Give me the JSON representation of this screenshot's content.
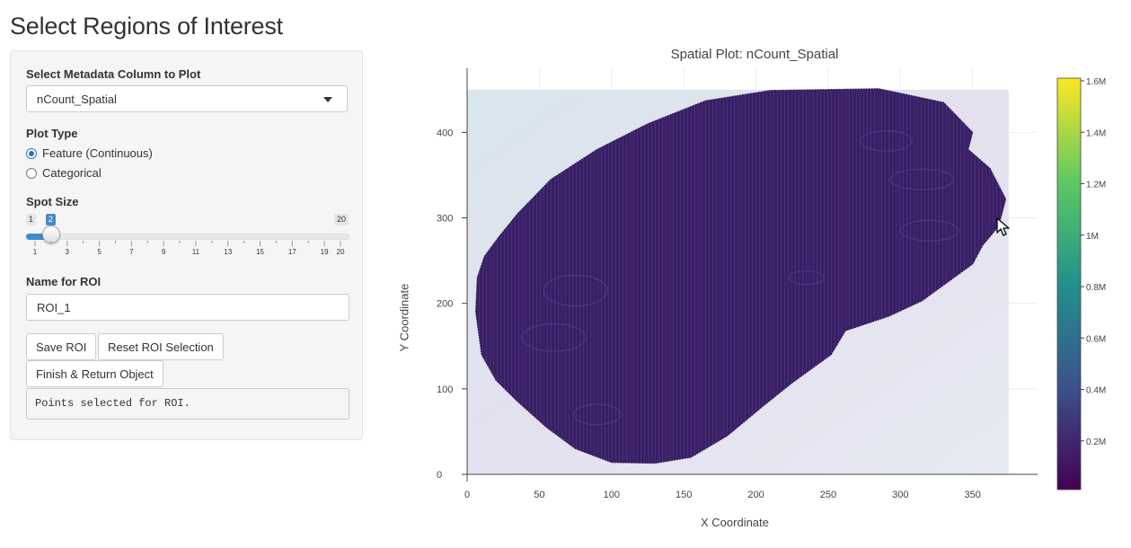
{
  "page": {
    "title": "Select Regions of Interest"
  },
  "sidebar": {
    "metadata_label": "Select Metadata Column to Plot",
    "metadata_value": "nCount_Spatial",
    "plot_type_label": "Plot Type",
    "plot_type_options": [
      {
        "label": "Feature (Continuous)",
        "checked": true
      },
      {
        "label": "Categorical",
        "checked": false
      }
    ],
    "spot_size_label": "Spot Size",
    "spot_size": {
      "min": "1",
      "max": "20",
      "value": "2",
      "min_num": 1,
      "max_num": 20,
      "value_num": 2,
      "tick_labels": [
        "1",
        "3",
        "5",
        "7",
        "9",
        "11",
        "13",
        "15",
        "17",
        "19",
        "20"
      ]
    },
    "roi_name_label": "Name for ROI",
    "roi_name_value": "ROI_1",
    "buttons": {
      "save": "Save ROI",
      "reset": "Reset ROI Selection",
      "finish": "Finish & Return Object"
    },
    "status_text": "Points selected for ROI."
  },
  "plot": {
    "title": "Spatial Plot: nCount_Spatial",
    "xlabel": "X Coordinate",
    "ylabel": "Y Coordinate",
    "x_ticks": [
      "0",
      "50",
      "100",
      "150",
      "200",
      "250",
      "300",
      "350"
    ],
    "y_ticks": [
      "0",
      "100",
      "200",
      "300",
      "400"
    ],
    "colorbar_ticks": [
      "0.2M",
      "0.4M",
      "0.6M",
      "0.8M",
      "1M",
      "1.2M",
      "1.4M",
      "1.6M"
    ],
    "colorscale": [
      "#440154",
      "#3b528b",
      "#21918c",
      "#5ec962",
      "#fde725"
    ],
    "spot_color": "#3a1f66"
  },
  "chart_data": {
    "type": "scatter",
    "title": "Spatial Plot: nCount_Spatial",
    "xlabel": "X Coordinate",
    "ylabel": "Y Coordinate",
    "xlim": [
      0,
      395
    ],
    "ylim": [
      0,
      475
    ],
    "colorbar_range": [
      0,
      1600000
    ],
    "tissue_outline": [
      [
        35,
        305
      ],
      [
        58,
        345
      ],
      [
        90,
        380
      ],
      [
        125,
        410
      ],
      [
        165,
        437
      ],
      [
        210,
        449
      ],
      [
        285,
        451
      ],
      [
        330,
        435
      ],
      [
        350,
        400
      ],
      [
        347,
        380
      ],
      [
        362,
        358
      ],
      [
        373,
        322
      ],
      [
        368,
        290
      ],
      [
        357,
        268
      ],
      [
        350,
        246
      ],
      [
        315,
        203
      ],
      [
        292,
        185
      ],
      [
        262,
        168
      ],
      [
        252,
        140
      ],
      [
        225,
        107
      ],
      [
        205,
        80
      ],
      [
        180,
        45
      ],
      [
        155,
        20
      ],
      [
        130,
        13
      ],
      [
        100,
        14
      ],
      [
        75,
        30
      ],
      [
        55,
        55
      ],
      [
        35,
        85
      ],
      [
        20,
        110
      ],
      [
        10,
        140
      ],
      [
        6,
        190
      ],
      [
        7,
        230
      ],
      [
        12,
        255
      ],
      [
        22,
        278
      ]
    ],
    "grid": true
  }
}
